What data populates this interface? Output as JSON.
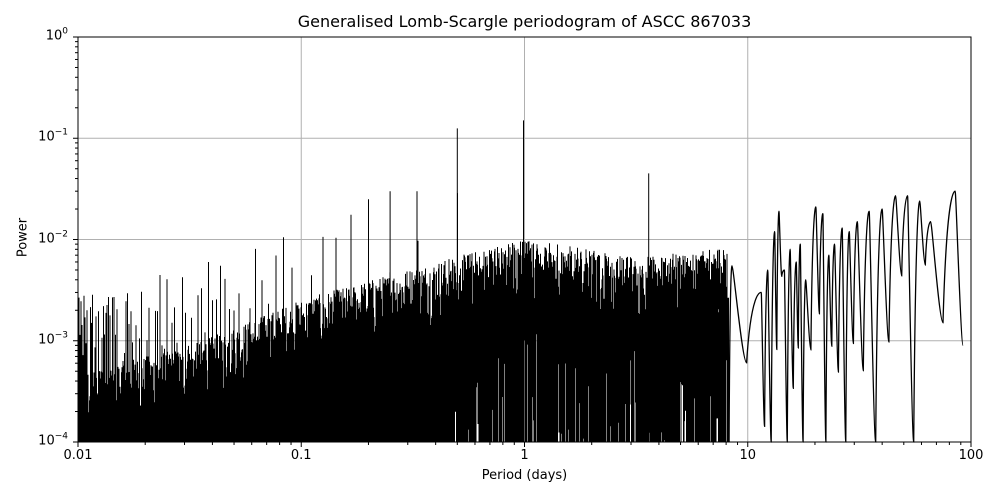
{
  "chart_data": {
    "type": "line",
    "title": "Generalised Lomb-Scargle periodogram of ASCC 867033",
    "xlabel": "Period (days)",
    "ylabel": "Power",
    "xscale": "log",
    "yscale": "log",
    "xlim": [
      0.01,
      100
    ],
    "ylim": [
      0.0001,
      1
    ],
    "grid": true,
    "legend": null,
    "line_color": "#000000",
    "x_ticks": [
      {
        "value": 0.01,
        "label": "0.01"
      },
      {
        "value": 0.1,
        "label": "0.1"
      },
      {
        "value": 1,
        "label": "1"
      },
      {
        "value": 10,
        "label": "10"
      },
      {
        "value": 100,
        "label": "100"
      }
    ],
    "y_ticks": [
      {
        "value": 1,
        "base": "10",
        "exp": "0"
      },
      {
        "value": 0.1,
        "base": "10",
        "exp": "−1"
      },
      {
        "value": 0.01,
        "base": "10",
        "exp": "−2"
      },
      {
        "value": 0.001,
        "base": "10",
        "exp": "−3"
      },
      {
        "value": 0.0001,
        "base": "10",
        "exp": "−4"
      }
    ],
    "notable_peaks": [
      {
        "period": 0.5,
        "power": 0.125
      },
      {
        "period": 0.99,
        "power": 0.15
      },
      {
        "period": 0.33,
        "power": 0.03
      },
      {
        "period": 0.25,
        "power": 0.03
      },
      {
        "period": 0.2,
        "power": 0.025
      },
      {
        "period": 3.6,
        "power": 0.045
      },
      {
        "period": 84,
        "power": 0.03
      },
      {
        "period": 52,
        "power": 0.027
      },
      {
        "period": 46,
        "power": 0.027
      },
      {
        "period": 20,
        "power": 0.021
      },
      {
        "period": 14,
        "power": 0.019
      }
    ],
    "noise_floor_envelope": [
      {
        "period": 0.01,
        "power": 0.0003
      },
      {
        "period": 0.03,
        "power": 0.0005
      },
      {
        "period": 0.1,
        "power": 0.0015
      },
      {
        "period": 0.3,
        "power": 0.003
      },
      {
        "period": 1,
        "power": 0.006
      },
      {
        "period": 3,
        "power": 0.004
      },
      {
        "period": 10,
        "power": 0.005
      },
      {
        "period": 30,
        "power": 0.015
      },
      {
        "period": 100,
        "power": 0.02
      }
    ],
    "long_period_lobes": [
      [
        8.5,
        0.0055
      ],
      [
        11.5,
        0.003
      ],
      [
        12.3,
        0.005
      ],
      [
        13.2,
        0.012
      ],
      [
        13.8,
        0.019
      ],
      [
        14.6,
        0.005
      ],
      [
        15.5,
        0.008
      ],
      [
        16.5,
        0.006
      ],
      [
        17.2,
        0.009
      ],
      [
        18.2,
        0.004
      ],
      [
        20.2,
        0.021
      ],
      [
        21.7,
        0.018
      ],
      [
        23.1,
        0.007
      ],
      [
        24.5,
        0.009
      ],
      [
        26.5,
        0.013
      ],
      [
        28.5,
        0.012
      ],
      [
        31,
        0.015
      ],
      [
        35,
        0.019
      ],
      [
        40,
        0.02
      ],
      [
        46,
        0.027
      ],
      [
        52,
        0.027
      ],
      [
        59,
        0.024
      ],
      [
        66,
        0.015
      ],
      [
        85,
        0.03
      ]
    ]
  }
}
